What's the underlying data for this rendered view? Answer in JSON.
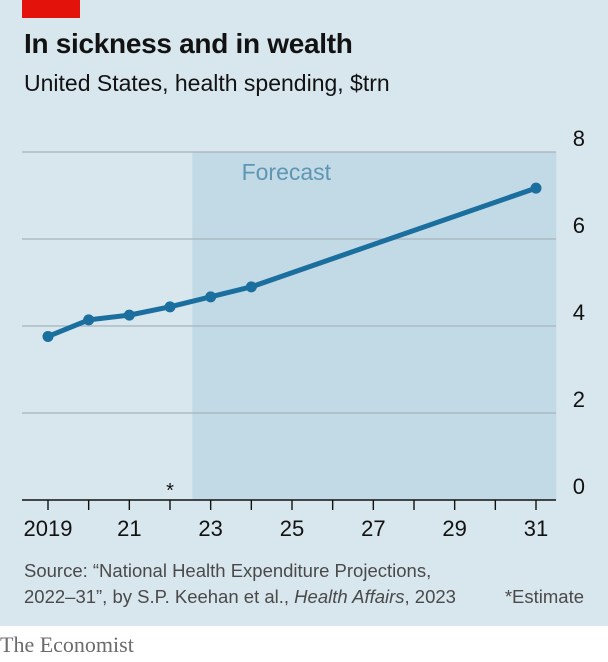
{
  "header": {
    "title": "In sickness and in wealth",
    "subtitle": "United States, health spending, $trn"
  },
  "footer": {
    "source_prefix": "Source: “National Health Expenditure Projections,",
    "source_line2": "2022–31”, by S.P. Keehan et al., ",
    "source_journal": "Health Affairs",
    "source_year": ", 2023",
    "estimate_note": "*Estimate",
    "brand": "The Economist"
  },
  "colors": {
    "background": "#d8e6ee",
    "forecast_band": "#c2d9e6",
    "line": "#1a6f9f",
    "brand_red": "#e3120b"
  },
  "chart_data": {
    "type": "line",
    "title": "In sickness and in wealth",
    "subtitle": "United States, health spending, $trn",
    "x": [
      2019,
      2020,
      2021,
      2022,
      2023,
      2024,
      2031
    ],
    "series": [
      {
        "values": [
          3.76,
          4.14,
          4.25,
          4.44,
          4.67,
          4.9,
          7.17
        ]
      }
    ],
    "xlim": [
      2019,
      2031
    ],
    "ylim": [
      0,
      8
    ],
    "x_ticks": [
      {
        "value": 2019,
        "label": "2019"
      },
      {
        "value": 2021,
        "label": "21"
      },
      {
        "value": 2023,
        "label": "23"
      },
      {
        "value": 2025,
        "label": "25"
      },
      {
        "value": 2027,
        "label": "27"
      },
      {
        "value": 2029,
        "label": "29"
      },
      {
        "value": 2031,
        "label": "31"
      }
    ],
    "y_ticks": [
      {
        "value": 0,
        "label": "0"
      },
      {
        "value": 2,
        "label": "2"
      },
      {
        "value": 4,
        "label": "4"
      },
      {
        "value": 6,
        "label": "6"
      },
      {
        "value": 8,
        "label": "8"
      }
    ],
    "forecast": {
      "label": "Forecast",
      "start": 2022.55,
      "end": 2031.5
    },
    "estimate_marker": {
      "x": 2022,
      "label": "*"
    },
    "grid": true,
    "legend": "none"
  }
}
